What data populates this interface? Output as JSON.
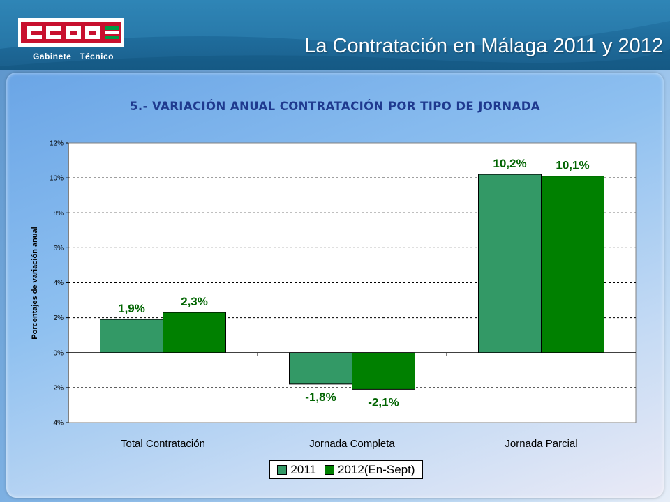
{
  "header": {
    "logo_text": "CCOO",
    "logo_sub": "Gabinete Técnico",
    "title": "La Contratación en Málaga 2011 y 2012"
  },
  "colors": {
    "logo_red": "#c8102e",
    "logo_green": "#009a44",
    "series_2011": "#339966",
    "series_2012": "#008000",
    "label_green": "#006400"
  },
  "chart_data": {
    "type": "bar",
    "title": "5.- VARIACIÓN ANUAL CONTRATACIÓN POR TIPO DE JORNADA",
    "xlabel": "",
    "ylabel": "Porcentajes de variación anual",
    "ylim": [
      -4,
      12
    ],
    "yticks": [
      -4,
      -2,
      0,
      2,
      4,
      6,
      8,
      10,
      12
    ],
    "ytick_labels": [
      "-4%",
      "-2%",
      "0%",
      "2%",
      "4%",
      "6%",
      "8%",
      "10%",
      "12%"
    ],
    "grid": true,
    "legend_position": "bottom",
    "categories": [
      "Total Contratación",
      "Jornada Completa",
      "Jornada Parcial"
    ],
    "series": [
      {
        "name": "2011",
        "values": [
          1.9,
          -1.8,
          10.2
        ],
        "labels": [
          "1,9%",
          "-1,8%",
          "10,2%"
        ]
      },
      {
        "name": "2012(En-Sept)",
        "values": [
          2.3,
          -2.1,
          10.1
        ],
        "labels": [
          "2,3%",
          "-2,1%",
          "10,1%"
        ]
      }
    ]
  }
}
